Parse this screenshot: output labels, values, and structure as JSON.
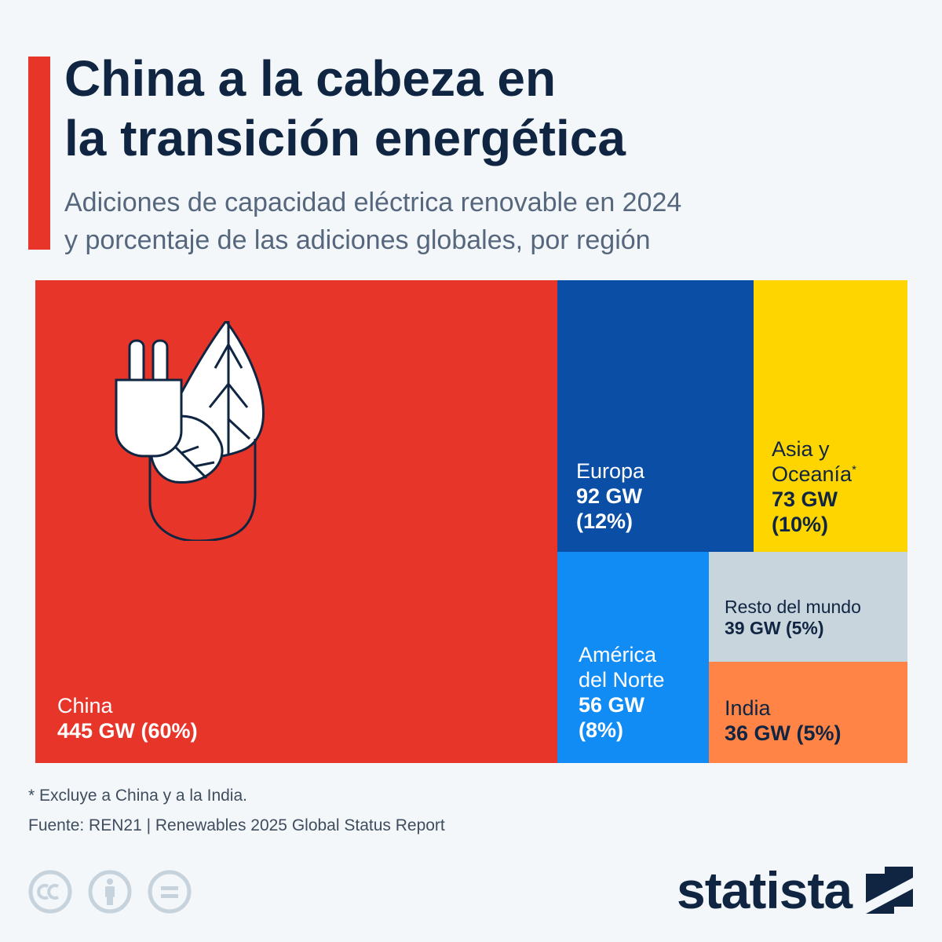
{
  "header": {
    "title": "China a la cabeza en\nla transición energética",
    "subtitle": "Adiciones de capacidad eléctrica renovable en 2024\ny porcentaje de las adiciones globales, por región"
  },
  "chart_data": {
    "type": "treemap",
    "unit": "GW",
    "series": [
      {
        "id": "china",
        "region": "China",
        "gw": 445,
        "pct": 60,
        "value_label": "445 GW (60%)",
        "color": "#e8352a",
        "text_color": "#ffffff"
      },
      {
        "id": "europa",
        "region": "Europa",
        "gw": 92,
        "pct": 12,
        "value_label": "92 GW\n(12%)",
        "color": "#0a4ea6",
        "text_color": "#ffffff"
      },
      {
        "id": "asia",
        "region": "Asia y\nOceanía",
        "footnote_mark": "*",
        "gw": 73,
        "pct": 10,
        "value_label": "73 GW\n(10%)",
        "color": "#ffd500",
        "text_color": "#0f2542"
      },
      {
        "id": "america",
        "region": "América\ndel Norte",
        "gw": 56,
        "pct": 8,
        "value_label": "56 GW\n(8%)",
        "color": "#118cf5",
        "text_color": "#ffffff"
      },
      {
        "id": "resto",
        "region": "Resto del mundo",
        "gw": 39,
        "pct": 5,
        "value_label": "39 GW (5%)",
        "color": "#c9d5dd",
        "text_color": "#0f2542"
      },
      {
        "id": "india",
        "region": "India",
        "gw": 36,
        "pct": 5,
        "value_label": "36 GW (5%)",
        "color": "#ff8446",
        "text_color": "#0f2542"
      }
    ]
  },
  "footer": {
    "footnote": "* Excluye a China y a la India.",
    "source": "Fuente: REN21 | Renewables 2025 Global Status Report",
    "brand": "statista"
  },
  "icons": {
    "illustration": "plug-leaf-icon",
    "license": [
      "cc-icon",
      "attribution-icon",
      "no-derivatives-icon"
    ],
    "brand_mark": "statista-logo-icon"
  }
}
